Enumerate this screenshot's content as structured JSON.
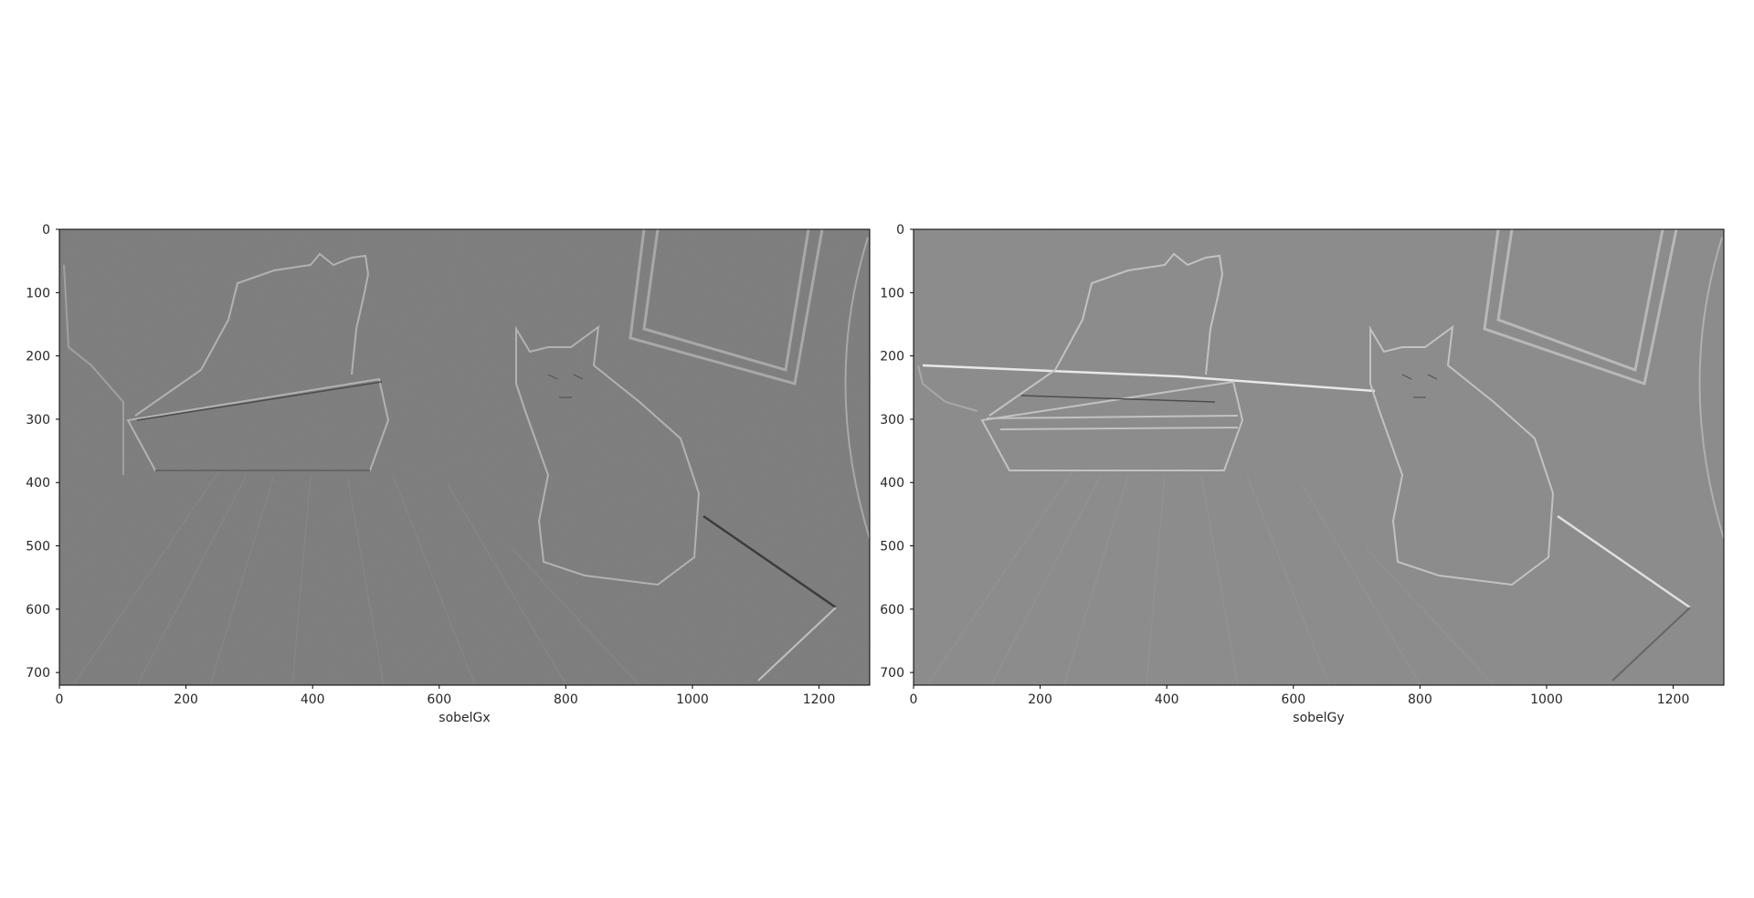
{
  "panels": [
    {
      "id": "sobelGx",
      "xlabel": "sobelGx",
      "description_colors": {
        "background": "#7c7c7c",
        "edge_light": "#b0b0b0",
        "edge_dark": "#4a4a4a"
      },
      "xticks": [
        "0",
        "200",
        "400",
        "600",
        "800",
        "1000",
        "1200"
      ],
      "yticks": [
        "0",
        "100",
        "200",
        "300",
        "400",
        "500",
        "600",
        "700"
      ]
    },
    {
      "id": "sobelGy",
      "xlabel": "sobelGy",
      "description_colors": {
        "background": "#8a8a8a",
        "edge_light": "#c4c4c4",
        "edge_dark": "#555555"
      },
      "xticks": [
        "0",
        "200",
        "400",
        "600",
        "800",
        "1000",
        "1200"
      ],
      "yticks": [
        "0",
        "100",
        "200",
        "300",
        "400",
        "500",
        "600",
        "700"
      ]
    }
  ],
  "image_extent": {
    "x_max": 1280,
    "y_max": 720
  }
}
